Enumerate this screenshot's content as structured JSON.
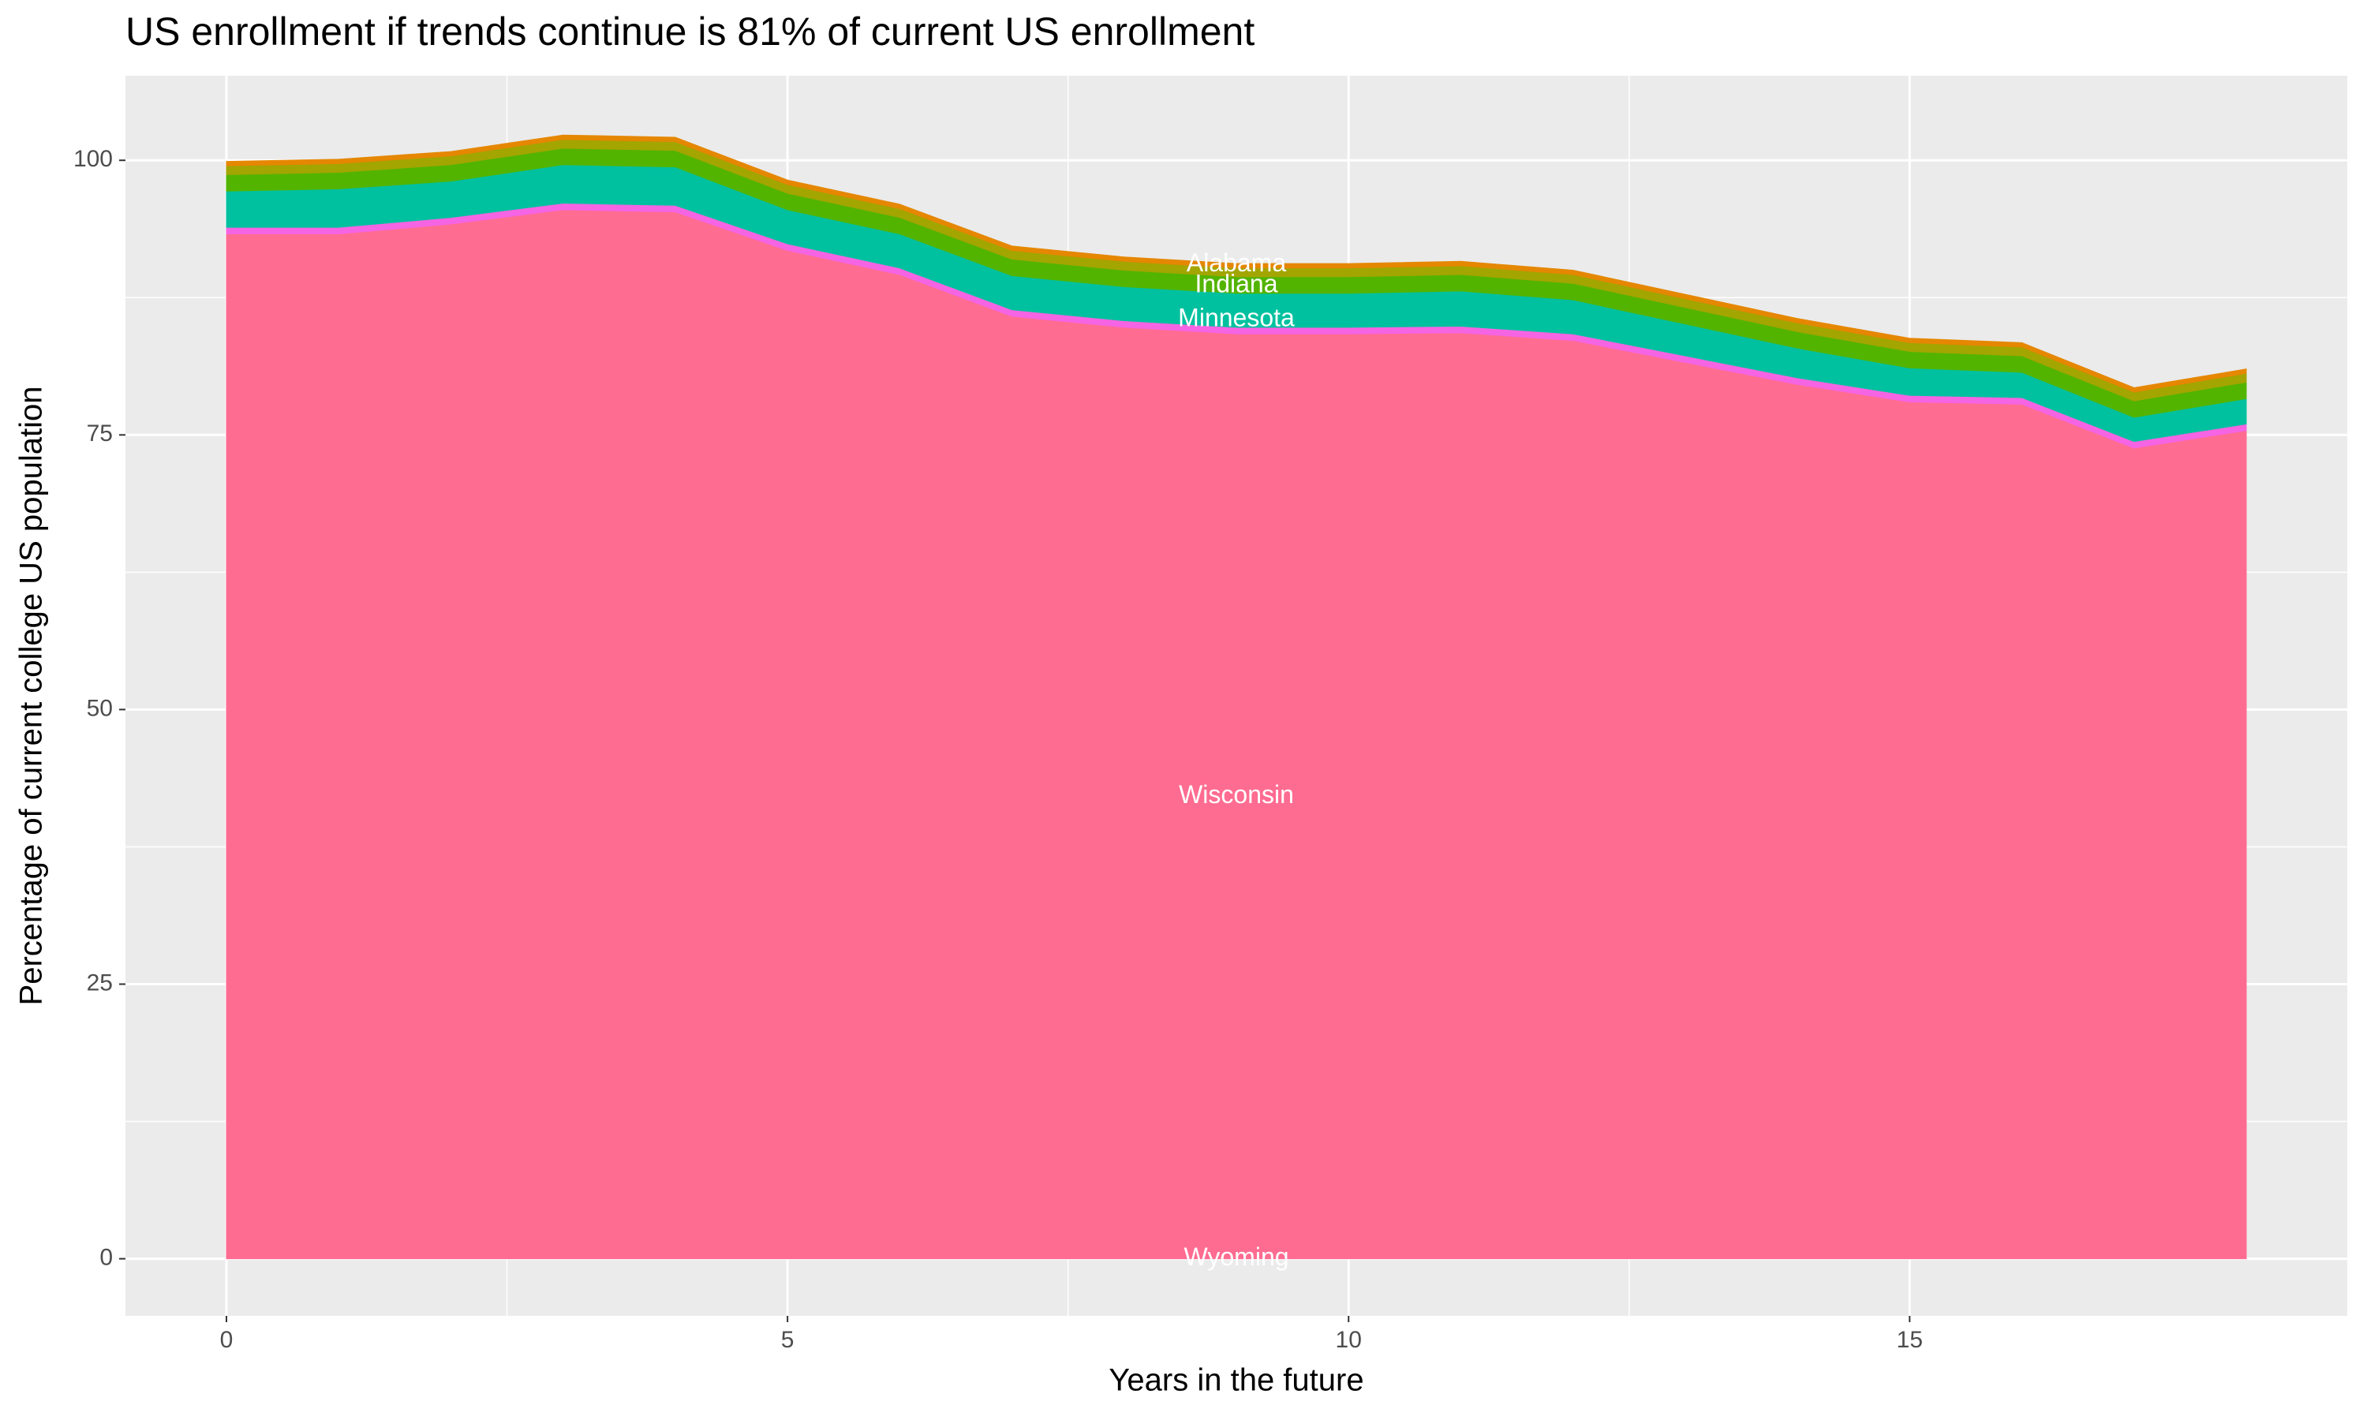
{
  "chart_data": {
    "type": "stacked_area",
    "title": "US enrollment if trends continue is 81% of current US enrollment",
    "x_label": "Years in the future",
    "y_label": "Percentage of current college US population",
    "x": [
      0,
      1,
      2,
      3,
      4,
      5,
      6,
      7,
      8,
      9,
      10,
      11,
      12,
      13,
      14,
      15,
      16,
      17,
      18
    ],
    "series": [
      {
        "color": "#FF6C91",
        "values": [
          93.3,
          93.3,
          94.2,
          95.5,
          95.3,
          91.8,
          89.6,
          85.8,
          84.8,
          84.2,
          84.2,
          84.3,
          83.6,
          81.6,
          79.6,
          78,
          77.8,
          73.8,
          75.4
        ]
      },
      {
        "color": "#F564E3",
        "values": [
          0.6,
          0.6,
          0.6,
          0.6,
          0.6,
          0.6,
          0.6,
          0.6,
          0.6,
          0.6,
          0.6,
          0.6,
          0.6,
          0.6,
          0.6,
          0.6,
          0.6,
          0.6,
          0.6
        ]
      },
      {
        "color": "#00C19F",
        "values": [
          3.3,
          3.5,
          3.3,
          3.5,
          3.5,
          3.1,
          3.1,
          3.1,
          3.1,
          3.1,
          3.1,
          3.2,
          3.1,
          2.9,
          2.7,
          2.5,
          2.3,
          2.2,
          2.3
        ]
      },
      {
        "color": "#53B400",
        "values": [
          1.5,
          1.5,
          1.5,
          1.5,
          1.5,
          1.5,
          1.5,
          1.5,
          1.5,
          1.5,
          1.5,
          1.5,
          1.5,
          1.5,
          1.5,
          1.5,
          1.5,
          1.5,
          1.5
        ]
      },
      {
        "color": "#A3A500",
        "values": [
          0.8,
          0.8,
          0.8,
          0.8,
          0.8,
          0.8,
          0.8,
          0.8,
          0.8,
          0.8,
          0.8,
          0.8,
          0.8,
          0.8,
          0.8,
          0.8,
          0.8,
          0.8,
          0.8
        ]
      },
      {
        "color": "#E58700",
        "values": [
          0.4,
          0.4,
          0.4,
          0.4,
          0.4,
          0.4,
          0.4,
          0.4,
          0.4,
          0.4,
          0.4,
          0.4,
          0.4,
          0.4,
          0.4,
          0.4,
          0.4,
          0.4,
          0.4
        ]
      }
    ],
    "annotations": [
      {
        "text": "Alabama",
        "x": 9,
        "y": 90.5
      },
      {
        "text": "Indiana",
        "x": 9,
        "y": 88.6
      },
      {
        "text": "Minnesota",
        "x": 9,
        "y": 85.5
      },
      {
        "text": "Wisconsin",
        "x": 9,
        "y": 42.1
      },
      {
        "text": "Wyoming",
        "x": 9,
        "y": 0
      }
    ],
    "xlim": [
      -0.9,
      18.9
    ],
    "ylim": [
      -5.2,
      107.7
    ],
    "xticks": [
      0,
      5,
      10,
      15
    ],
    "yticks": [
      0,
      25,
      50,
      75,
      100
    ],
    "grid": true
  }
}
